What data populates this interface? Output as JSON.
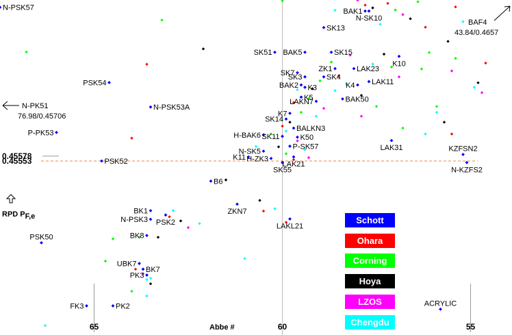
{
  "chart_data": {
    "type": "scatter",
    "xlabel": "Abbe #",
    "ylabel": "RPD  P",
    "ylabel_sub": "F,e",
    "x_direction": "reversed",
    "xlim": [
      67.5,
      53.9
    ],
    "ylim": [
      0.4467,
      0.4637
    ],
    "x_ticks": [
      65,
      60,
      55
    ],
    "y_ticks": [
      0.45578,
      0.45553
    ],
    "reference_line": {
      "y": 0.45553,
      "style": "dashed",
      "color": "#e8864a"
    },
    "vertical_line": {
      "x": 60
    },
    "offscale_markers": [
      {
        "label": "N-PK51",
        "value_text": "76.98/0.45706",
        "direction": "left"
      },
      {
        "label": "BAF4",
        "value_text": "43.84/0.4657",
        "direction": "upper-right"
      }
    ],
    "legend": [
      {
        "name": "Schott",
        "color": "#0000ff"
      },
      {
        "name": "Ohara",
        "color": "#ff0000"
      },
      {
        "name": "Corning",
        "color": "#00ff00"
      },
      {
        "name": "Hoya",
        "color": "#000000"
      },
      {
        "name": "LZOS",
        "color": "#ff00ff"
      },
      {
        "name": "Chengdu",
        "color": "#00ffff"
      }
    ],
    "labeled_points": [
      {
        "name": "N-PSK57",
        "x": 67.5,
        "y": 0.46333,
        "series": "Schott",
        "label_pos": "right"
      },
      {
        "name": "PSK54",
        "x": 64.6,
        "y": 0.45951,
        "series": "Schott",
        "label_pos": "left"
      },
      {
        "name": "N-PSK53A",
        "x": 63.5,
        "y": 0.45827,
        "series": "Schott",
        "label_pos": "right"
      },
      {
        "name": "P-PK53",
        "x": 66.0,
        "y": 0.45698,
        "series": "Schott",
        "label_pos": "left"
      },
      {
        "name": "PSK52",
        "x": 64.8,
        "y": 0.45553,
        "series": "Schott",
        "label_pos": "right"
      },
      {
        "name": "PSK50",
        "x": 66.4,
        "y": 0.45138,
        "series": "Schott",
        "label_pos": "above"
      },
      {
        "name": "B6",
        "x": 61.9,
        "y": 0.45451,
        "series": "Schott",
        "label_pos": "right"
      },
      {
        "name": "BK1",
        "x": 63.5,
        "y": 0.45301,
        "series": "Schott",
        "label_pos": "left"
      },
      {
        "name": "N-PSK3",
        "x": 63.5,
        "y": 0.45257,
        "series": "Schott",
        "label_pos": "left"
      },
      {
        "name": "PSK2",
        "x": 63.1,
        "y": 0.45279,
        "series": "Schott",
        "label_pos": "below"
      },
      {
        "name": "BK8",
        "x": 63.6,
        "y": 0.45175,
        "series": "Schott",
        "label_pos": "left"
      },
      {
        "name": "UBK7",
        "x": 63.8,
        "y": 0.45033,
        "series": "Schott",
        "label_pos": "left"
      },
      {
        "name": "BK7",
        "x": 63.7,
        "y": 0.45004,
        "series": "Schott",
        "label_pos": "right"
      },
      {
        "name": "PK3",
        "x": 63.6,
        "y": 0.44974,
        "series": "Schott",
        "label_pos": "left"
      },
      {
        "name": "FK3",
        "x": 65.2,
        "y": 0.44818,
        "series": "Schott",
        "label_pos": "left"
      },
      {
        "name": "PK2",
        "x": 64.5,
        "y": 0.44818,
        "series": "Schott",
        "label_pos": "right"
      },
      {
        "name": "BAK1",
        "x": 57.8,
        "y": 0.46314,
        "series": "Schott",
        "label_pos": "left"
      },
      {
        "name": "N-SK10",
        "x": 57.7,
        "y": 0.46314,
        "series": "Schott",
        "label_pos": "below"
      },
      {
        "name": "SK13",
        "x": 58.9,
        "y": 0.4623,
        "series": "Schott",
        "label_pos": "right"
      },
      {
        "name": "SK51",
        "x": 60.2,
        "y": 0.46105,
        "series": "Schott",
        "label_pos": "left"
      },
      {
        "name": "BAK5",
        "x": 59.4,
        "y": 0.46105,
        "series": "Schott",
        "label_pos": "left"
      },
      {
        "name": "SK15",
        "x": 58.7,
        "y": 0.46105,
        "series": "Schott",
        "label_pos": "right"
      },
      {
        "name": "K10",
        "x": 56.9,
        "y": 0.46084,
        "series": "Schott",
        "label_pos": "below"
      },
      {
        "name": "ZK1",
        "x": 58.6,
        "y": 0.46022,
        "series": "Schott",
        "label_pos": "left"
      },
      {
        "name": "SK7",
        "x": 59.6,
        "y": 0.46001,
        "series": "Schott",
        "label_pos": "left"
      },
      {
        "name": "SK3",
        "x": 59.4,
        "y": 0.4598,
        "series": "Schott",
        "label_pos": "left"
      },
      {
        "name": "SK4",
        "x": 58.9,
        "y": 0.4598,
        "series": "Schott",
        "label_pos": "right"
      },
      {
        "name": "LAK23",
        "x": 58.1,
        "y": 0.46022,
        "series": "Schott",
        "label_pos": "right"
      },
      {
        "name": "LAK11",
        "x": 57.7,
        "y": 0.45956,
        "series": "Schott",
        "label_pos": "right"
      },
      {
        "name": "BAK2",
        "x": 59.5,
        "y": 0.45939,
        "series": "Schott",
        "label_pos": "left"
      },
      {
        "name": "K3",
        "x": 59.4,
        "y": 0.45927,
        "series": "Schott",
        "label_pos": "right"
      },
      {
        "name": "K4",
        "x": 58.0,
        "y": 0.45939,
        "series": "Schott",
        "label_pos": "left"
      },
      {
        "name": "K5",
        "x": 59.5,
        "y": 0.45877,
        "series": "Schott",
        "label_pos": "right"
      },
      {
        "name": "LAKN7",
        "x": 59.1,
        "y": 0.45856,
        "series": "Schott",
        "label_pos": "left"
      },
      {
        "name": "BAK50",
        "x": 58.4,
        "y": 0.45868,
        "series": "Schott",
        "label_pos": "right"
      },
      {
        "name": "K7",
        "x": 59.8,
        "y": 0.45795,
        "series": "Schott",
        "label_pos": "left"
      },
      {
        "name": "SK14",
        "x": 59.9,
        "y": 0.45766,
        "series": "Schott",
        "label_pos": "left"
      },
      {
        "name": "BALKN3",
        "x": 59.7,
        "y": 0.4572,
        "series": "Schott",
        "label_pos": "right"
      },
      {
        "name": "SK11",
        "x": 60.0,
        "y": 0.45678,
        "series": "Schott",
        "label_pos": "left"
      },
      {
        "name": "H-BAK6",
        "x": 60.5,
        "y": 0.45686,
        "series": "Schott",
        "label_pos": "left"
      },
      {
        "name": "K50",
        "x": 59.6,
        "y": 0.45674,
        "series": "Schott",
        "label_pos": "right"
      },
      {
        "name": "P-SK57",
        "x": 59.8,
        "y": 0.45628,
        "series": "Schott",
        "label_pos": "right"
      },
      {
        "name": "N-SK5",
        "x": 60.5,
        "y": 0.45603,
        "series": "Schott",
        "label_pos": "left"
      },
      {
        "name": "K11",
        "x": 60.9,
        "y": 0.45574,
        "series": "Schott",
        "label_pos": "left"
      },
      {
        "name": "H-ZK3",
        "x": 60.3,
        "y": 0.45566,
        "series": "Schott",
        "label_pos": "left"
      },
      {
        "name": "LAK21",
        "x": 59.7,
        "y": 0.45574,
        "series": "Schott",
        "label_pos": "below"
      },
      {
        "name": "SK55",
        "x": 60.0,
        "y": 0.45545,
        "series": "Schott",
        "label_pos": "below"
      },
      {
        "name": "LAK31",
        "x": 57.1,
        "y": 0.45657,
        "series": "Schott",
        "label_pos": "below"
      },
      {
        "name": "KZFSN2",
        "x": 55.2,
        "y": 0.45586,
        "series": "Schott",
        "label_pos": "above"
      },
      {
        "name": "N-KZFS2",
        "x": 55.1,
        "y": 0.45545,
        "series": "Schott",
        "label_pos": "below"
      },
      {
        "name": "ZKN7",
        "x": 61.2,
        "y": 0.45334,
        "series": "Schott",
        "label_pos": "below"
      },
      {
        "name": "LAKL21",
        "x": 59.8,
        "y": 0.45259,
        "series": "Schott",
        "label_pos": "below"
      },
      {
        "name": "ACRYLIC",
        "x": 55.8,
        "y": 0.44801,
        "series": "Schott",
        "label_pos": "above"
      }
    ],
    "background_points": [
      {
        "x": 60.0,
        "y": 0.46366,
        "series": "Corning"
      },
      {
        "x": 63.2,
        "y": 0.46268,
        "series": "Corning"
      },
      {
        "x": 66.8,
        "y": 0.46106,
        "series": "Corning"
      },
      {
        "x": 63.6,
        "y": 0.46044,
        "series": "Ohara"
      },
      {
        "x": 62.1,
        "y": 0.46122,
        "series": "Hoya"
      },
      {
        "x": 64.0,
        "y": 0.45669,
        "series": "Ohara"
      },
      {
        "x": 60.7,
        "y": 0.45627,
        "series": "Chengdu"
      },
      {
        "x": 61.5,
        "y": 0.45457,
        "series": "Hoya"
      },
      {
        "x": 60.6,
        "y": 0.45353,
        "series": "Hoya"
      },
      {
        "x": 60.5,
        "y": 0.45299,
        "series": "Ohara"
      },
      {
        "x": 60.2,
        "y": 0.45311,
        "series": "Chengdu"
      },
      {
        "x": 59.9,
        "y": 0.45242,
        "series": "Ohara"
      },
      {
        "x": 61.0,
        "y": 0.45058,
        "series": "Chengdu"
      },
      {
        "x": 63.0,
        "y": 0.4527,
        "series": "Ohara"
      },
      {
        "x": 62.9,
        "y": 0.45301,
        "series": "Chengdu"
      },
      {
        "x": 62.7,
        "y": 0.45249,
        "series": "Hoya"
      },
      {
        "x": 62.5,
        "y": 0.45215,
        "series": "LZOS"
      },
      {
        "x": 62.2,
        "y": 0.45236,
        "series": "Chengdu"
      },
      {
        "x": 64.7,
        "y": 0.45045,
        "series": "Corning"
      },
      {
        "x": 64.5,
        "y": 0.45158,
        "series": "Corning"
      },
      {
        "x": 63.9,
        "y": 0.45004,
        "series": "Ohara"
      },
      {
        "x": 63.6,
        "y": 0.44951,
        "series": "Chengdu"
      },
      {
        "x": 64.0,
        "y": 0.44892,
        "series": "Corning"
      },
      {
        "x": 63.5,
        "y": 0.4493,
        "series": "Hoya"
      },
      {
        "x": 63.6,
        "y": 0.44868,
        "series": "Chengdu"
      },
      {
        "x": 66.3,
        "y": 0.44718,
        "series": "Chengdu"
      },
      {
        "x": 63.8,
        "y": 0.45166,
        "series": "Corning"
      },
      {
        "x": 63.3,
        "y": 0.45166,
        "series": "Hoya"
      },
      {
        "x": 63.7,
        "y": 0.44981,
        "series": "LZOS"
      },
      {
        "x": 63.5,
        "y": 0.44958,
        "series": "Chengdu"
      },
      {
        "x": 58.0,
        "y": 0.46369,
        "series": "LZOS"
      },
      {
        "x": 57.8,
        "y": 0.46344,
        "series": "Ohara"
      },
      {
        "x": 57.6,
        "y": 0.4633,
        "series": "Hoya"
      },
      {
        "x": 57.2,
        "y": 0.46353,
        "series": "Ohara"
      },
      {
        "x": 57.0,
        "y": 0.46319,
        "series": "Corning"
      },
      {
        "x": 56.8,
        "y": 0.46296,
        "series": "LZOS"
      },
      {
        "x": 56.6,
        "y": 0.46275,
        "series": "Hoya"
      },
      {
        "x": 57.4,
        "y": 0.46247,
        "series": "Chengdu"
      },
      {
        "x": 56.4,
        "y": 0.46361,
        "series": "Corning"
      },
      {
        "x": 56.2,
        "y": 0.46232,
        "series": "Ohara"
      },
      {
        "x": 58.6,
        "y": 0.46318,
        "series": "Chengdu"
      },
      {
        "x": 55.4,
        "y": 0.46335,
        "series": "Ohara"
      },
      {
        "x": 55.2,
        "y": 0.4626,
        "series": "Chengdu"
      },
      {
        "x": 55.6,
        "y": 0.4616,
        "series": "Hoya"
      },
      {
        "x": 56.1,
        "y": 0.46104,
        "series": "Corning"
      },
      {
        "x": 55.4,
        "y": 0.46074,
        "series": "Corning"
      },
      {
        "x": 54.6,
        "y": 0.4605,
        "series": "Ohara"
      },
      {
        "x": 54.9,
        "y": 0.45927,
        "series": "Chengdu"
      },
      {
        "x": 55.5,
        "y": 0.4601,
        "series": "LZOS"
      },
      {
        "x": 56.3,
        "y": 0.4602,
        "series": "Corning"
      },
      {
        "x": 57.1,
        "y": 0.4603,
        "series": "Corning"
      },
      {
        "x": 57.3,
        "y": 0.46095,
        "series": "Hoya"
      },
      {
        "x": 57.6,
        "y": 0.46045,
        "series": "Chengdu"
      },
      {
        "x": 58.2,
        "y": 0.4609,
        "series": "LZOS"
      },
      {
        "x": 58.7,
        "y": 0.46055,
        "series": "Corning"
      },
      {
        "x": 58.5,
        "y": 0.45985,
        "series": "Ohara"
      },
      {
        "x": 58.3,
        "y": 0.45945,
        "series": "Chengdu"
      },
      {
        "x": 59.0,
        "y": 0.4596,
        "series": "Corning"
      },
      {
        "x": 59.2,
        "y": 0.4592,
        "series": "Hoya"
      },
      {
        "x": 59.6,
        "y": 0.45915,
        "series": "Chengdu"
      },
      {
        "x": 59.7,
        "y": 0.4585,
        "series": "Ohara"
      },
      {
        "x": 59.3,
        "y": 0.4587,
        "series": "Corning"
      },
      {
        "x": 58.9,
        "y": 0.4582,
        "series": "LZOS"
      },
      {
        "x": 59.1,
        "y": 0.4578,
        "series": "Chengdu"
      },
      {
        "x": 59.5,
        "y": 0.458,
        "series": "Corning"
      },
      {
        "x": 59.8,
        "y": 0.4575,
        "series": "Hoya"
      },
      {
        "x": 60.0,
        "y": 0.4573,
        "series": "Ohara"
      },
      {
        "x": 59.9,
        "y": 0.45705,
        "series": "Chengdu"
      },
      {
        "x": 60.3,
        "y": 0.4569,
        "series": "Corning"
      },
      {
        "x": 59.6,
        "y": 0.45655,
        "series": "LZOS"
      },
      {
        "x": 59.4,
        "y": 0.4561,
        "series": "Chengdu"
      },
      {
        "x": 59.9,
        "y": 0.4559,
        "series": "Corning"
      },
      {
        "x": 60.1,
        "y": 0.45625,
        "series": "Hoya"
      },
      {
        "x": 59.3,
        "y": 0.4557,
        "series": "LZOS"
      },
      {
        "x": 59.7,
        "y": 0.4556,
        "series": "Ohara"
      },
      {
        "x": 57.9,
        "y": 0.4578,
        "series": "LZOS"
      },
      {
        "x": 57.5,
        "y": 0.4583,
        "series": "Corning"
      },
      {
        "x": 56.8,
        "y": 0.4572,
        "series": "Corning"
      },
      {
        "x": 55.9,
        "y": 0.458,
        "series": "Chengdu"
      },
      {
        "x": 55.7,
        "y": 0.4575,
        "series": "Hoya"
      },
      {
        "x": 55.5,
        "y": 0.4569,
        "series": "Ohara"
      },
      {
        "x": 56.2,
        "y": 0.4569,
        "series": "Chengdu"
      },
      {
        "x": 54.8,
        "y": 0.4595,
        "series": "Hoya"
      },
      {
        "x": 54.7,
        "y": 0.459,
        "series": "LZOS"
      },
      {
        "x": 57.9,
        "y": 0.45886,
        "series": "Hoya"
      },
      {
        "x": 58.6,
        "y": 0.4591,
        "series": "Chengdu"
      },
      {
        "x": 56.9,
        "y": 0.4598,
        "series": "LZOS"
      },
      {
        "x": 55.9,
        "y": 0.4583,
        "series": "Corning"
      }
    ]
  }
}
